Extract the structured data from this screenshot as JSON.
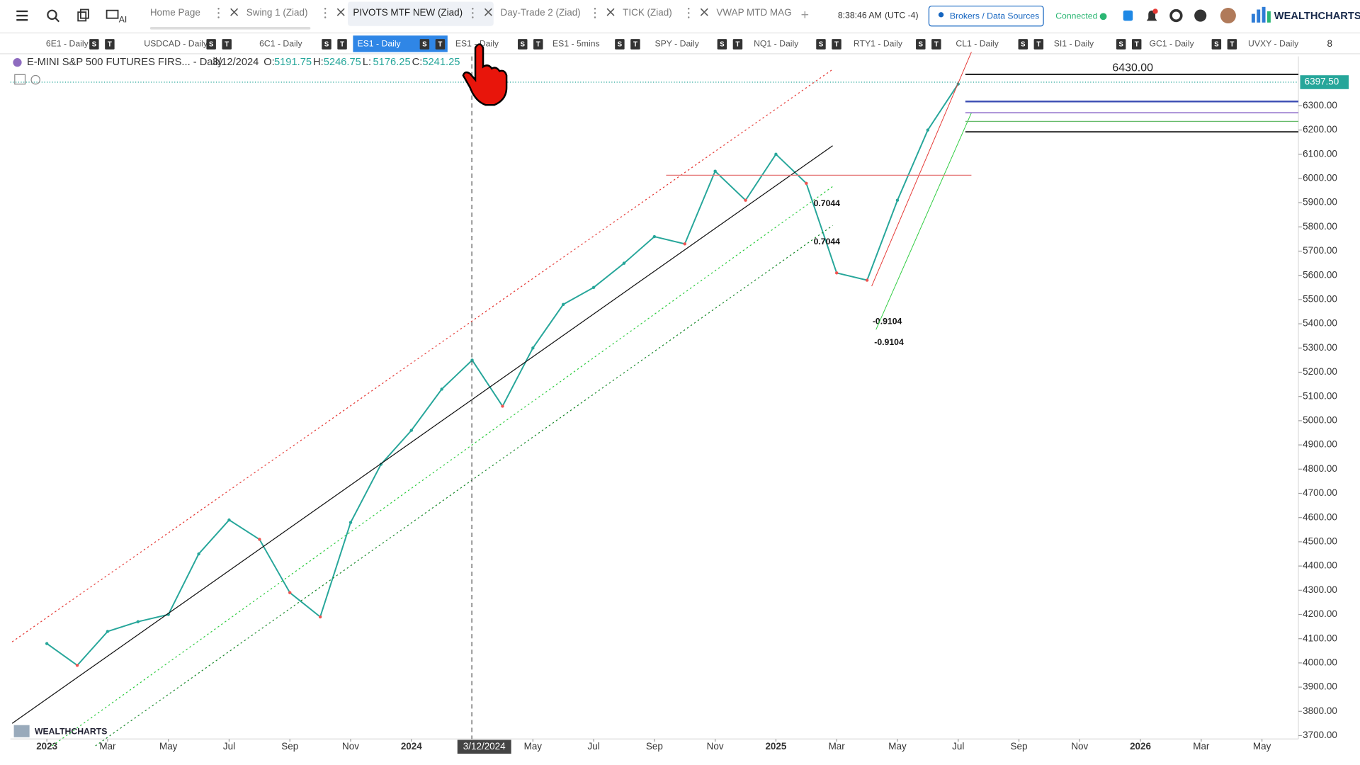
{
  "toolbar": {
    "tabs": [
      "Home Page",
      "Swing 1 (Ziad)",
      "PIVOTS MTF NEW (Ziad)",
      "Day-Trade 2 (Ziad)",
      "TICK (Ziad)",
      "VWAP MTD MAG"
    ],
    "active_tab": 2,
    "time": "8:38:46 AM",
    "timezone": "(UTC -4)",
    "brokers_button": "Brokers / Data Sources",
    "status": "Connected",
    "logo": "WEALTHCHARTS"
  },
  "symbol_tabs": {
    "items": [
      "6E1 - Daily",
      "USDCAD - Daily",
      "6C1 - Daily",
      "ES1 - Daily",
      "ES1 - Daily",
      "ES1 - 5mins",
      "SPY - Daily",
      "NQ1 - Daily",
      "RTY1 - Daily",
      "CL1 - Daily",
      "SI1 - Daily",
      "GC1 - Daily",
      "UVXY - Daily"
    ],
    "active": 3,
    "badges": [
      "S",
      "T"
    ],
    "count": "8"
  },
  "chart_header": {
    "symbol": "E-MINI S&P 500 FUTURES FIRS... - Daily",
    "date": "3/12/2024",
    "ohlc": [
      {
        "key": "O:",
        "value": "5191.75"
      },
      {
        "key": "H:",
        "value": "5246.75"
      },
      {
        "key": "L:",
        "value": "5176.25"
      },
      {
        "key": "C:",
        "value": "5241.25"
      }
    ]
  },
  "chart_data": {
    "type": "line",
    "x": [
      0,
      1,
      2,
      3,
      4,
      5,
      6,
      7,
      8,
      9,
      10,
      11,
      12,
      13,
      14,
      15,
      16,
      17,
      18,
      19,
      20,
      21,
      22,
      23,
      24,
      25,
      26,
      27,
      28,
      29,
      30
    ],
    "values": [
      4080,
      3990,
      4130,
      4170,
      4200,
      4450,
      4590,
      4510,
      4290,
      4190,
      4580,
      4820,
      4960,
      5130,
      5250,
      5060,
      5300,
      5480,
      5550,
      5650,
      5760,
      5730,
      6030,
      5910,
      6100,
      5980,
      5610,
      5580,
      5910,
      6200,
      6390
    ],
    "color": "#26a69a",
    "xlim": [
      -1.2,
      41.2
    ],
    "ylim": [
      3686,
      6504
    ],
    "xticks": [
      {
        "value": 0,
        "label": "2023"
      },
      {
        "value": 2,
        "label": "Mar"
      },
      {
        "value": 4,
        "label": "May"
      },
      {
        "value": 6,
        "label": "Jul"
      },
      {
        "value": 8,
        "label": "Sep"
      },
      {
        "value": 10,
        "label": "Nov"
      },
      {
        "value": 12,
        "label": "2024"
      },
      {
        "value": 16,
        "label": "May"
      },
      {
        "value": 18,
        "label": "Jul"
      },
      {
        "value": 20,
        "label": "Sep"
      },
      {
        "value": 22,
        "label": "Nov"
      },
      {
        "value": 24,
        "label": "2025"
      },
      {
        "value": 26,
        "label": "Mar"
      },
      {
        "value": 28,
        "label": "May"
      },
      {
        "value": 30,
        "label": "Jul"
      },
      {
        "value": 32,
        "label": "Sep"
      },
      {
        "value": 34,
        "label": "Nov"
      },
      {
        "value": 36,
        "label": "2026"
      },
      {
        "value": 38,
        "label": "Mar"
      },
      {
        "value": 40,
        "label": "May"
      }
    ],
    "yticks": [
      {
        "value": 3700,
        "label": "3700.00"
      },
      {
        "value": 3800,
        "label": "3800.00"
      },
      {
        "value": 3900,
        "label": "3900.00"
      },
      {
        "value": 4000,
        "label": "4000.00"
      },
      {
        "value": 4100,
        "label": "4100.00"
      },
      {
        "value": 4200,
        "label": "4200.00"
      },
      {
        "value": 4300,
        "label": "4300.00"
      },
      {
        "value": 4400,
        "label": "4400.00"
      },
      {
        "value": 4500,
        "label": "4500.00"
      },
      {
        "value": 4600,
        "label": "4600.00"
      },
      {
        "value": 4700,
        "label": "4700.00"
      },
      {
        "value": 4800,
        "label": "4800.00"
      },
      {
        "value": 4900,
        "label": "4900.00"
      },
      {
        "value": 5000,
        "label": "5000.00"
      },
      {
        "value": 5100,
        "label": "5100.00"
      },
      {
        "value": 5200,
        "label": "5200.00"
      },
      {
        "value": 5300,
        "label": "5300.00"
      },
      {
        "value": 5400,
        "label": "5400.00"
      },
      {
        "value": 5500,
        "label": "5500.00"
      },
      {
        "value": 5600,
        "label": "5600.00"
      },
      {
        "value": 5700,
        "label": "5700.00"
      },
      {
        "value": 5800,
        "label": "5800.00"
      },
      {
        "value": 5900,
        "label": "5900.00"
      },
      {
        "value": 6000,
        "label": "6000.00"
      },
      {
        "value": 6100,
        "label": "6100.00"
      },
      {
        "value": 6200,
        "label": "6200.00"
      },
      {
        "value": 6300,
        "label": "6300.00"
      }
    ],
    "crosshair": {
      "value": 14.4,
      "label": "3/12/2024"
    },
    "last_price": {
      "value": 6397.5,
      "label": "6397.50"
    },
    "level": {
      "value": 6430,
      "label": "6430.00"
    },
    "annotations": [
      "0.7044",
      "0.7044",
      "-0.9104",
      "-0.9104"
    ],
    "watermark": "WEALTHCHARTS"
  }
}
